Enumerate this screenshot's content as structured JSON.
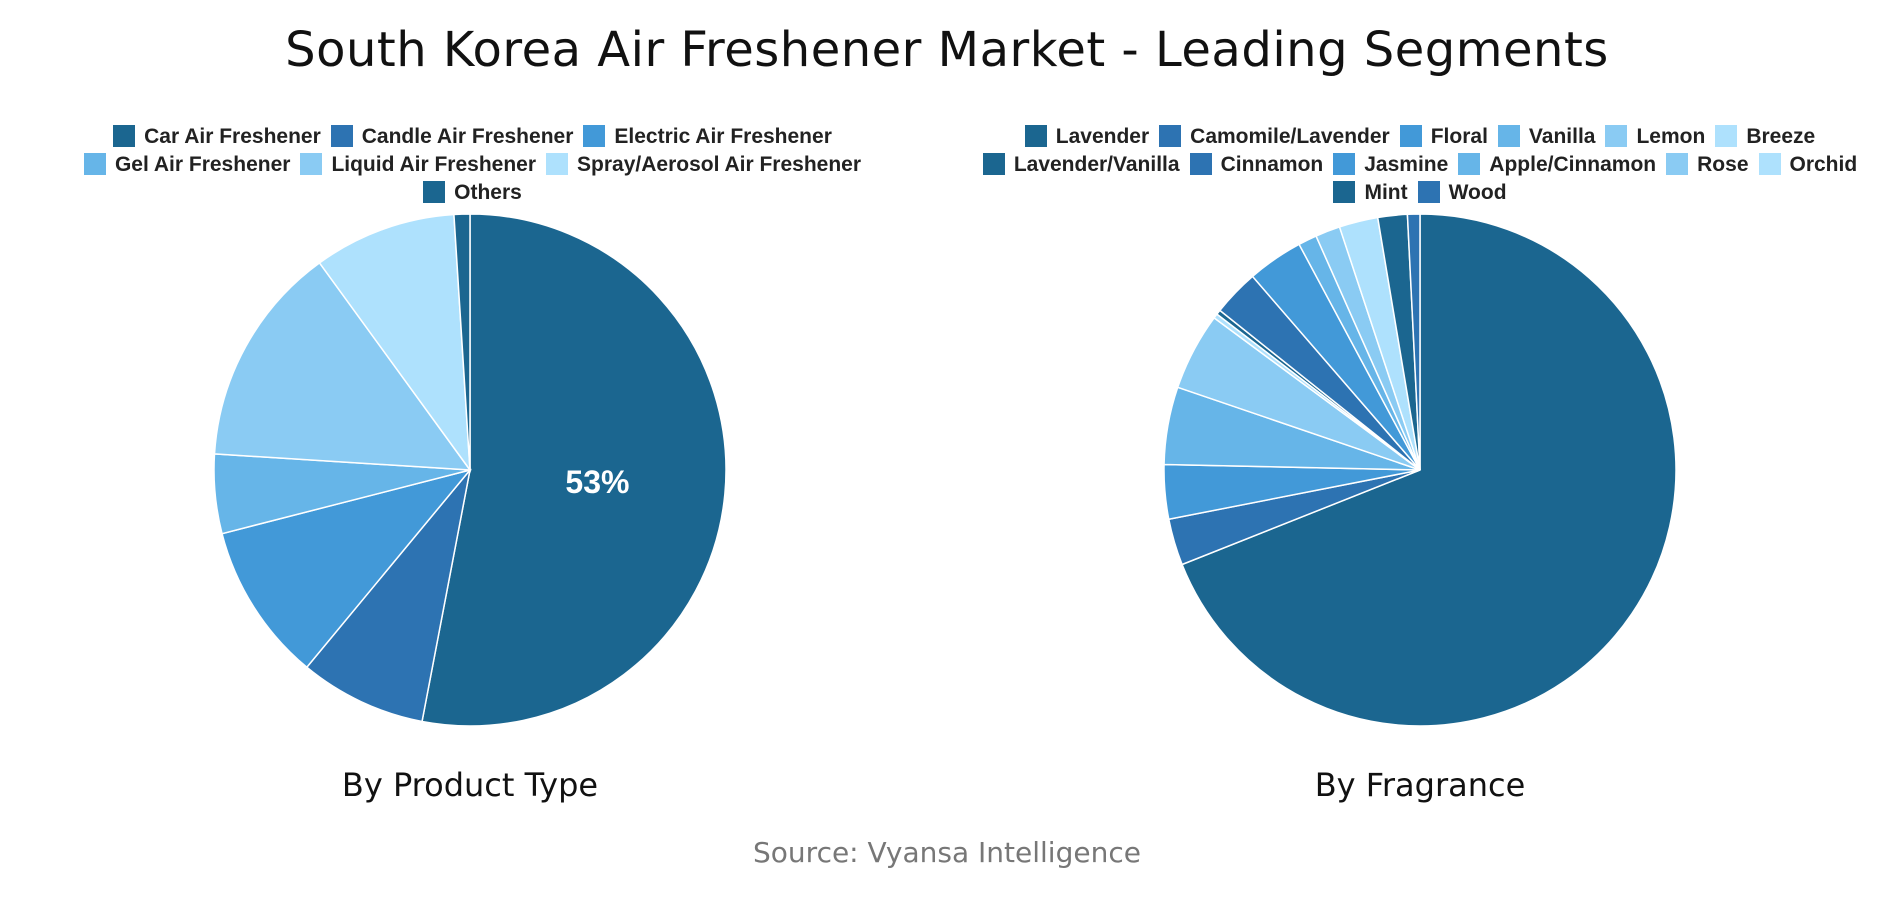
{
  "title": "South Korea Air Freshener Market - Leading Segments",
  "source": "Source: Vyansa Intelligence",
  "chart_data": [
    {
      "type": "pie",
      "subtitle": "By Product Type",
      "labels": [
        "Car Air Freshener",
        "Candle Air Freshener",
        "Electric Air Freshener",
        "Gel Air Freshener",
        "Liquid Air Freshener",
        "Spray/Aerosol Air Freshener",
        "Others"
      ],
      "values": [
        53,
        8,
        10,
        5,
        14,
        9,
        1
      ],
      "colors": [
        "#1b6690",
        "#2d73b2",
        "#4299d8",
        "#66b5e8",
        "#8acbf3",
        "#aee1fd",
        "#1b6690"
      ],
      "data_labels": [
        "53%",
        "",
        "",
        "",
        "",
        "",
        ""
      ],
      "legend_rows": [
        [
          0,
          1,
          2
        ],
        [
          3,
          4,
          5
        ],
        [
          6
        ]
      ]
    },
    {
      "type": "pie",
      "subtitle": "By Fragrance",
      "labels": [
        "Lavender",
        "Camomile/Lavender",
        "Floral",
        "Vanilla",
        "Lemon",
        "Breeze",
        "Lavender/Vanilla",
        "Cinnamon",
        "Jasmine",
        "Apple/Cinnamon",
        "Rose",
        "Orchid",
        "Mint",
        "Wood"
      ],
      "values": [
        70.5,
        3,
        3.5,
        5,
        5,
        0.3,
        0.3,
        3,
        3.6,
        1.2,
        1.6,
        2.5,
        1.9,
        0.8
      ],
      "colors": [
        "#1b6690",
        "#2d73b2",
        "#4299d8",
        "#66b5e8",
        "#8acbf3",
        "#aee1fd",
        "#1b6690",
        "#2d73b2",
        "#4299d8",
        "#66b5e8",
        "#8acbf3",
        "#aee1fd",
        "#1b6690",
        "#2d73b2"
      ],
      "data_labels": [
        "",
        "",
        "",
        "",
        "",
        "",
        "",
        "",
        "",
        "",
        "",
        "",
        "",
        ""
      ],
      "legend_rows": [
        [
          0,
          1,
          2,
          3,
          4,
          5
        ],
        [
          6,
          7,
          8,
          9,
          10,
          11
        ],
        [
          12,
          13
        ]
      ]
    }
  ]
}
